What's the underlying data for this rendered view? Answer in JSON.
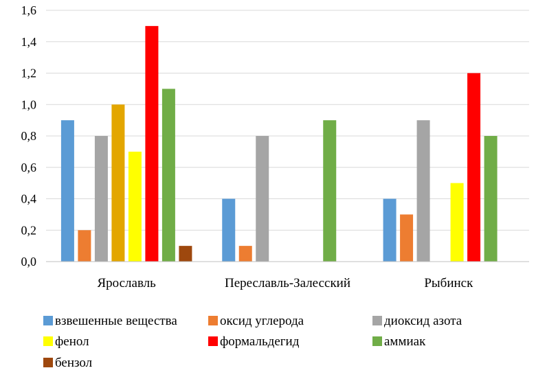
{
  "chart_data": {
    "type": "bar",
    "categories": [
      "Ярославль",
      "Переславль-Залесский",
      "Рыбинск"
    ],
    "ylim": [
      0,
      1.6
    ],
    "ytick_labels": [
      "0,0",
      "0,2",
      "0,4",
      "0,6",
      "0,8",
      "1,0",
      "1,2",
      "1,4",
      "1,6"
    ],
    "grid": true,
    "legend_position": "bottom",
    "series": [
      {
        "name": "взвешенные вещества",
        "color": "#5B9BD5",
        "values": [
          0.9,
          0.4,
          0.4
        ]
      },
      {
        "name": "оксид углерода",
        "color": "#ED7D31",
        "values": [
          0.2,
          0.1,
          0.3
        ]
      },
      {
        "name": "диоксид азота",
        "color": "#A5A5A5",
        "values": [
          0.8,
          0.8,
          0.9
        ]
      },
      {
        "name": "",
        "color": "#E3A600",
        "values": [
          1.0,
          null,
          null
        ]
      },
      {
        "name": "фенол",
        "color": "#FFFF00",
        "values": [
          0.7,
          null,
          0.5
        ]
      },
      {
        "name": "формальдегид",
        "color": "#FF0000",
        "values": [
          1.5,
          null,
          1.2
        ]
      },
      {
        "name": "аммиак",
        "color": "#70AD47",
        "values": [
          1.1,
          0.9,
          0.8
        ]
      },
      {
        "name": "бензол",
        "color": "#9E480E",
        "values": [
          0.1,
          null,
          null
        ]
      }
    ]
  }
}
